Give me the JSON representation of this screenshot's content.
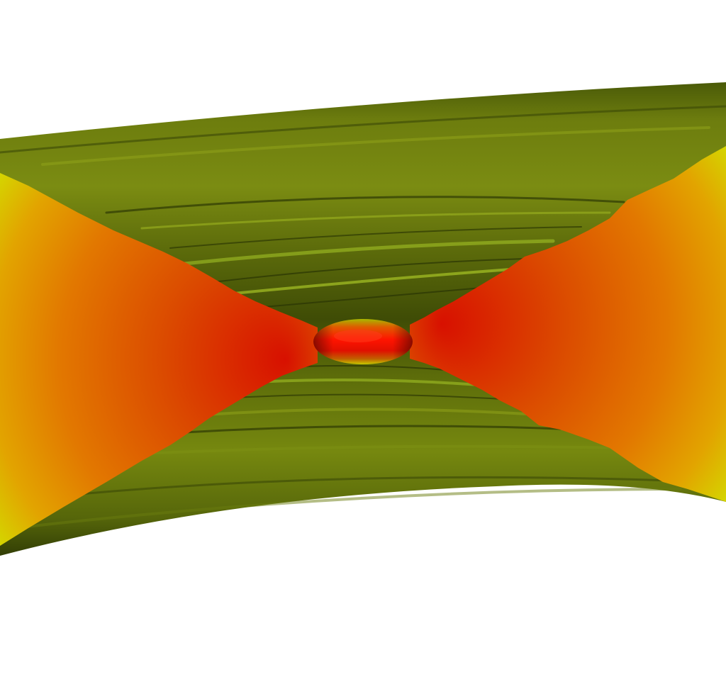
{
  "scene": {
    "kind": "3D isosurface render",
    "background_color": "#ffffff",
    "colors": {
      "outer_shell_dark": "#3c4a08",
      "outer_shell_mid": "#67770c",
      "outer_shell_light": "#8fa21a",
      "inner_stripe_highlight": "#b6d42a",
      "cone_edge_yellow": "#d8d800",
      "cone_mid_orange": "#e07a00",
      "cone_core_red": "#d81000",
      "throat_red": "#ff1a00"
    }
  }
}
